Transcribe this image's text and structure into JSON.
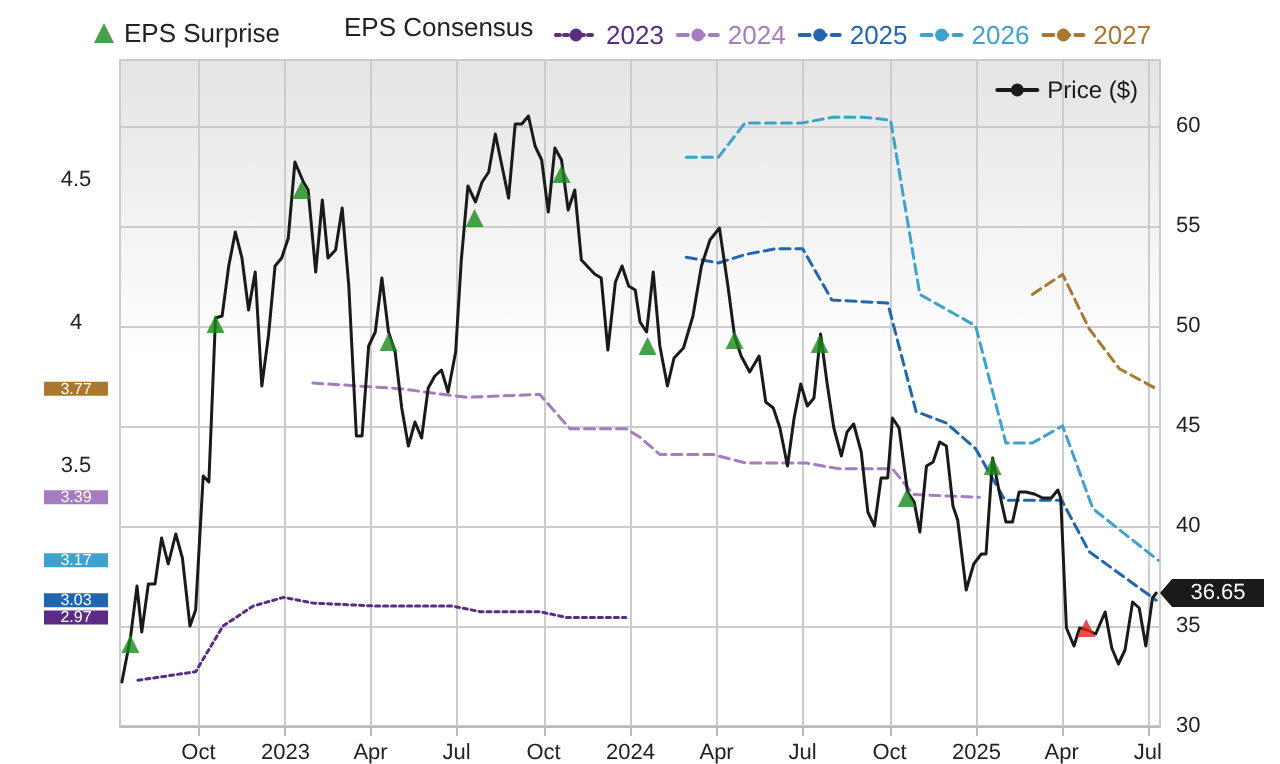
{
  "chart_data": {
    "type": "line",
    "legend": "top",
    "legend_title": "EPS Consensus",
    "grid": true,
    "marker": "none",
    "xlim": [
      "2022-07-10",
      "2025-07-14"
    ],
    "xticks": [
      {
        "value": "2022-10-01",
        "label": "Oct"
      },
      {
        "value": "2023-01-01",
        "label": "2023"
      },
      {
        "value": "2023-04-01",
        "label": "Apr"
      },
      {
        "value": "2023-07-01",
        "label": "Jul"
      },
      {
        "value": "2023-10-01",
        "label": "Oct"
      },
      {
        "value": "2024-01-01",
        "label": "2024"
      },
      {
        "value": "2024-04-01",
        "label": "Apr"
      },
      {
        "value": "2024-07-01",
        "label": "Jul"
      },
      {
        "value": "2024-10-01",
        "label": "Oct"
      },
      {
        "value": "2025-01-01",
        "label": "2025"
      },
      {
        "value": "2025-04-01",
        "label": "Apr"
      },
      {
        "value": "2025-07-01",
        "label": "Jul"
      }
    ],
    "ylim": [
      2.59,
      4.92
    ],
    "yticks": [
      2.97,
      3.03,
      3.17,
      3.39,
      3.5,
      3.77,
      4,
      4.5
    ],
    "y2lim": [
      30,
      63.3
    ],
    "y2ticks": [
      30,
      35,
      40,
      45,
      50,
      55,
      60
    ],
    "series": [
      {
        "name": "EPS Surprise",
        "type": "scatter",
        "marker": "triangle",
        "axis": "y2",
        "x": [
          "2022-07-21",
          "2022-10-19",
          "2023-01-18",
          "2023-04-20",
          "2023-07-20",
          "2023-10-20",
          "2024-01-19",
          "2024-04-20",
          "2024-07-19",
          "2024-10-19",
          "2025-01-18",
          "2025-04-27"
        ],
        "values": [
          34.1,
          50.1,
          56.8,
          49.2,
          55.4,
          57.6,
          49.0,
          49.3,
          49.1,
          41.4,
          43.0,
          34.9
        ],
        "colors": [
          "#1a8a1a",
          "#1a8a1a",
          "#1a8a1a",
          "#1a8a1a",
          "#1a8a1a",
          "#1a8a1a",
          "#1a8a1a",
          "#1a8a1a",
          "#1a8a1a",
          "#1a8a1a",
          "#1a8a1a",
          "#e8201e"
        ]
      },
      {
        "name": "2023",
        "color": "#5b2c83",
        "line_style": "dotted",
        "x": [
          "2022-07-29",
          "2022-09-28",
          "2022-10-27",
          "2022-11-28",
          "2022-12-30",
          "2023-01-30",
          "2023-04-04",
          "2023-06-26",
          "2023-07-26",
          "2023-09-27",
          "2023-10-25",
          "2023-12-27"
        ],
        "values": [
          2.75,
          2.78,
          2.94,
          3.01,
          3.04,
          3.02,
          3.01,
          3.01,
          2.99,
          2.99,
          2.97,
          2.97
        ]
      },
      {
        "name": "2024",
        "color": "#a57cbf",
        "line_style": "dashed",
        "x": [
          "2023-01-30",
          "2023-05-02",
          "2023-07-11",
          "2023-09-27",
          "2023-10-29",
          "2023-12-27",
          "2024-01-11",
          "2024-02-01",
          "2024-03-28",
          "2024-05-02",
          "2024-07-05",
          "2024-08-09",
          "2024-10-04",
          "2024-10-26",
          "2025-01-04"
        ],
        "values": [
          3.79,
          3.77,
          3.74,
          3.75,
          3.63,
          3.63,
          3.6,
          3.54,
          3.54,
          3.51,
          3.51,
          3.49,
          3.49,
          3.4,
          3.39
        ]
      },
      {
        "name": "2025",
        "color": "#2266b0",
        "line_style": "dashed",
        "x": [
          "2024-02-29",
          "2024-04-03",
          "2024-05-02",
          "2024-06-03",
          "2024-07-01",
          "2024-08-01",
          "2024-09-29",
          "2024-10-29",
          "2024-11-30",
          "2024-12-31",
          "2025-01-31",
          "2025-04-01",
          "2025-04-30",
          "2025-07-10"
        ],
        "values": [
          4.23,
          4.21,
          4.24,
          4.26,
          4.26,
          4.08,
          4.07,
          3.69,
          3.65,
          3.56,
          3.38,
          3.38,
          3.2,
          3.03
        ]
      },
      {
        "name": "2026",
        "color": "#3ea2cc",
        "line_style": "dashed",
        "x": [
          "2024-02-29",
          "2024-04-03",
          "2024-05-01",
          "2024-07-01",
          "2024-08-02",
          "2024-09-03",
          "2024-10-02",
          "2024-11-02",
          "2024-12-31",
          "2025-02-01",
          "2025-03-01",
          "2025-04-02",
          "2025-05-04",
          "2025-07-12"
        ],
        "values": [
          4.58,
          4.58,
          4.7,
          4.7,
          4.72,
          4.72,
          4.71,
          4.1,
          3.99,
          3.58,
          3.58,
          3.64,
          3.35,
          3.17
        ]
      },
      {
        "name": "2027",
        "color": "#a9782e",
        "line_style": "dashed",
        "x": [
          "2025-03-01",
          "2025-04-02",
          "2025-04-30",
          "2025-06-01",
          "2025-07-10"
        ],
        "values": [
          4.1,
          4.17,
          3.98,
          3.84,
          3.77
        ]
      },
      {
        "name": "Price ($)",
        "color": "#1a1a1a",
        "line_style": "solid",
        "axis": "y2",
        "x": [
          "2022-07-12",
          "2022-07-21",
          "2022-07-28",
          "2022-08-02",
          "2022-08-09",
          "2022-08-16",
          "2022-08-23",
          "2022-08-30",
          "2022-09-07",
          "2022-09-14",
          "2022-09-22",
          "2022-09-28",
          "2022-10-06",
          "2022-10-12",
          "2022-10-19",
          "2022-10-26",
          "2022-11-02",
          "2022-11-09",
          "2022-11-16",
          "2022-11-23",
          "2022-11-30",
          "2022-12-07",
          "2022-12-14",
          "2022-12-21",
          "2022-12-28",
          "2023-01-04",
          "2023-01-11",
          "2023-01-20",
          "2023-01-25",
          "2023-02-02",
          "2023-02-09",
          "2023-02-15",
          "2023-02-23",
          "2023-03-02",
          "2023-03-09",
          "2023-03-17",
          "2023-03-23",
          "2023-03-30",
          "2023-04-06",
          "2023-04-13",
          "2023-04-20",
          "2023-04-27",
          "2023-05-04",
          "2023-05-11",
          "2023-05-18",
          "2023-05-25",
          "2023-06-01",
          "2023-06-08",
          "2023-06-15",
          "2023-06-22",
          "2023-06-30",
          "2023-07-06",
          "2023-07-13",
          "2023-07-21",
          "2023-07-28",
          "2023-08-04",
          "2023-08-11",
          "2023-08-18",
          "2023-08-25",
          "2023-09-01",
          "2023-09-08",
          "2023-09-15",
          "2023-09-22",
          "2023-09-29",
          "2023-10-06",
          "2023-10-13",
          "2023-10-20",
          "2023-10-27",
          "2023-11-03",
          "2023-11-10",
          "2023-11-24",
          "2023-12-01",
          "2023-12-08",
          "2023-12-16",
          "2023-12-23",
          "2023-12-30",
          "2024-01-06",
          "2024-01-11",
          "2024-01-18",
          "2024-01-25",
          "2024-02-01",
          "2024-02-09",
          "2024-02-16",
          "2024-02-26",
          "2024-03-07",
          "2024-03-16",
          "2024-03-25",
          "2024-04-04",
          "2024-04-13",
          "2024-04-20",
          "2024-04-27",
          "2024-05-06",
          "2024-05-16",
          "2024-05-23",
          "2024-05-31",
          "2024-06-07",
          "2024-06-15",
          "2024-06-22",
          "2024-06-29",
          "2024-07-06",
          "2024-07-13",
          "2024-07-20",
          "2024-07-27",
          "2024-08-03",
          "2024-08-11",
          "2024-08-17",
          "2024-08-24",
          "2024-09-01",
          "2024-09-08",
          "2024-09-15",
          "2024-09-22",
          "2024-09-29",
          "2024-10-04",
          "2024-10-11",
          "2024-10-20",
          "2024-10-27",
          "2024-11-02",
          "2024-11-09",
          "2024-11-16",
          "2024-11-23",
          "2024-11-30",
          "2024-12-07",
          "2024-12-12",
          "2024-12-21",
          "2024-12-29",
          "2025-01-06",
          "2025-01-11",
          "2025-01-18",
          "2025-01-25",
          "2025-02-01",
          "2025-02-08",
          "2025-02-15",
          "2025-02-22",
          "2025-03-03",
          "2025-03-12",
          "2025-03-21",
          "2025-03-28",
          "2025-03-31",
          "2025-04-06",
          "2025-04-14",
          "2025-04-20",
          "2025-04-28",
          "2025-05-07",
          "2025-05-17",
          "2025-05-24",
          "2025-05-31",
          "2025-06-07",
          "2025-06-15",
          "2025-06-22",
          "2025-06-29",
          "2025-07-06",
          "2025-07-10"
        ],
        "values": [
          32.2,
          34.4,
          37.0,
          34.7,
          37.1,
          37.1,
          39.4,
          38.1,
          39.6,
          38.4,
          35.0,
          35.8,
          42.5,
          42.2,
          50.4,
          50.5,
          53.0,
          54.7,
          53.4,
          50.8,
          52.7,
          47.0,
          49.5,
          53.0,
          53.4,
          54.4,
          58.2,
          57.2,
          56.8,
          52.7,
          56.3,
          53.4,
          53.8,
          55.9,
          52.0,
          44.5,
          44.5,
          49.0,
          49.7,
          52.4,
          49.7,
          48.7,
          45.9,
          44.0,
          45.2,
          44.4,
          46.9,
          47.5,
          47.8,
          46.7,
          48.7,
          53.3,
          57.0,
          56.2,
          57.2,
          57.7,
          59.6,
          58.0,
          56.4,
          60.1,
          60.1,
          60.5,
          59.0,
          58.3,
          55.7,
          58.9,
          58.3,
          55.8,
          56.8,
          53.3,
          52.6,
          52.4,
          48.8,
          52.2,
          53.0,
          52.0,
          51.8,
          50.2,
          49.7,
          52.7,
          49.0,
          47.0,
          48.4,
          48.9,
          50.5,
          53.0,
          54.3,
          54.9,
          52.0,
          49.5,
          48.5,
          47.7,
          48.5,
          46.2,
          45.9,
          44.9,
          43.0,
          45.4,
          47.1,
          46.0,
          46.4,
          49.6,
          47.1,
          44.9,
          43.5,
          44.7,
          45.1,
          43.7,
          40.7,
          40.0,
          42.4,
          42.4,
          45.4,
          44.9,
          41.7,
          41.2,
          39.7,
          43.0,
          43.2,
          44.2,
          44.0,
          41.0,
          40.3,
          36.8,
          38.1,
          38.6,
          38.6,
          43.4,
          41.7,
          40.2,
          40.2,
          41.7,
          41.7,
          41.6,
          41.4,
          41.4,
          41.8,
          41.4,
          34.9,
          34.0,
          34.9,
          34.8,
          34.6,
          35.7,
          33.9,
          33.1,
          33.8,
          36.2,
          35.9,
          34.0,
          36.4,
          36.65
        ],
        "value_labels": [
          null,
          null,
          null,
          null,
          null,
          null,
          null,
          null,
          null,
          null,
          null,
          null,
          null,
          null,
          null,
          null,
          null,
          null,
          null,
          null,
          null,
          null,
          null,
          null,
          null,
          null,
          null,
          null,
          null,
          null,
          null,
          null,
          null,
          null,
          null,
          null,
          null,
          null,
          null,
          null,
          null,
          null,
          null,
          null,
          null,
          null,
          null,
          null,
          null,
          null,
          null,
          null,
          null,
          null,
          null,
          null,
          null,
          null,
          null,
          null,
          null,
          null,
          null,
          null,
          null,
          null,
          null,
          null,
          null,
          null,
          null,
          null,
          null,
          null,
          null,
          null,
          null,
          null,
          null,
          null,
          null,
          null,
          null,
          null,
          null,
          null,
          null,
          null,
          null,
          null,
          null,
          null,
          null,
          null,
          null,
          null,
          null,
          null,
          null,
          null,
          null,
          null,
          null,
          null,
          null,
          null,
          null,
          null,
          null,
          null,
          null,
          null,
          null,
          null,
          null,
          null,
          null,
          null,
          null,
          null,
          null,
          null,
          null,
          null,
          null,
          null,
          null,
          null,
          null,
          null,
          null,
          null,
          null,
          null,
          null,
          null,
          null,
          null,
          null,
          null,
          null,
          null,
          null,
          null,
          null,
          null,
          null,
          null,
          null,
          null,
          null,
          "36.65"
        ]
      }
    ]
  }
}
